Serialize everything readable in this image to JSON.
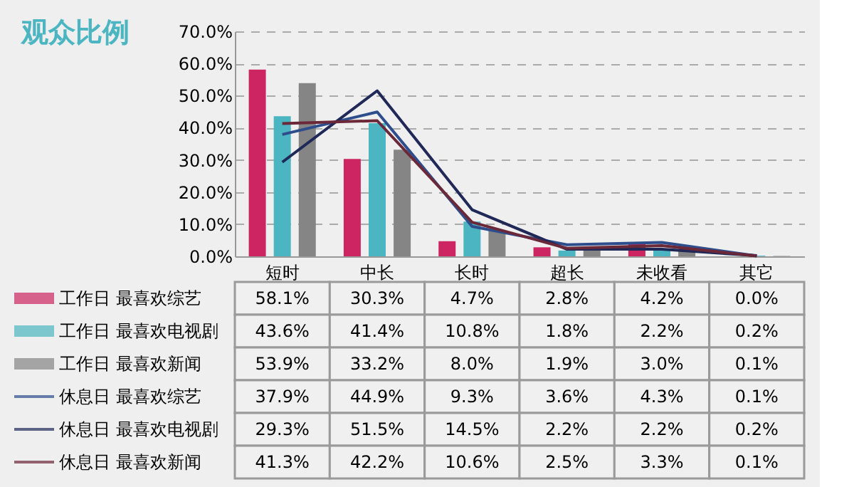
{
  "chart_data": {
    "type": "bar",
    "title": "观众比例",
    "categories": [
      "短时",
      "中长",
      "长时",
      "超长",
      "未收看",
      "其它"
    ],
    "ylim": [
      0,
      70
    ],
    "yticks": [
      {
        "value": 0,
        "label": "0.0%"
      },
      {
        "value": 10,
        "label": "10.0%"
      },
      {
        "value": 20,
        "label": "20.0%"
      },
      {
        "value": 30,
        "label": "30.0%"
      },
      {
        "value": 40,
        "label": "40.0%"
      },
      {
        "value": 50,
        "label": "50.0%"
      },
      {
        "value": 60,
        "label": "60.0%"
      },
      {
        "value": 70,
        "label": "70.0%"
      }
    ],
    "grid": "y",
    "legend": "bottom",
    "series": [
      {
        "name": "工作日 最喜欢综艺",
        "color": "#cc2561",
        "values": [
          58.1,
          30.3,
          4.7,
          2.8,
          4.2,
          0.0
        ],
        "value_labels": [
          "58.1%",
          "30.3%",
          "4.7%",
          "2.8%",
          "4.2%",
          "0.0%"
        ]
      },
      {
        "name": "工作日 最喜欢电视剧",
        "color": "#4bb5c1",
        "values": [
          43.6,
          41.4,
          10.8,
          1.8,
          2.2,
          0.2
        ],
        "value_labels": [
          "43.6%",
          "41.4%",
          "10.8%",
          "1.8%",
          "2.2%",
          "0.2%"
        ]
      },
      {
        "name": "工作日 最喜欢新闻",
        "color": "#858585",
        "values": [
          53.9,
          33.2,
          8.0,
          1.9,
          3.0,
          0.1
        ],
        "value_labels": [
          "53.9%",
          "33.2%",
          "8.0%",
          "1.9%",
          "3.0%",
          "0.1%"
        ]
      },
      {
        "name": "休息日 最喜欢综艺",
        "type": "line",
        "color": "#2e4d8c",
        "values": [
          37.9,
          44.9,
          9.3,
          3.6,
          4.3,
          0.1
        ],
        "value_labels": [
          "37.9%",
          "44.9%",
          "9.3%",
          "3.6%",
          "4.3%",
          "0.1%"
        ]
      },
      {
        "name": "休息日 最喜欢电视剧",
        "type": "line",
        "color": "#1f2857",
        "values": [
          29.3,
          51.5,
          14.5,
          2.2,
          2.2,
          0.2
        ],
        "value_labels": [
          "29.3%",
          "51.5%",
          "14.5%",
          "2.2%",
          "2.2%",
          "0.2%"
        ]
      },
      {
        "name": "休息日 最喜欢新闻",
        "type": "line",
        "color": "#6b2838",
        "values": [
          41.3,
          42.2,
          10.6,
          2.5,
          3.3,
          0.1
        ],
        "value_labels": [
          "41.3%",
          "42.2%",
          "10.6%",
          "2.5%",
          "3.3%",
          "0.1%"
        ]
      }
    ]
  }
}
